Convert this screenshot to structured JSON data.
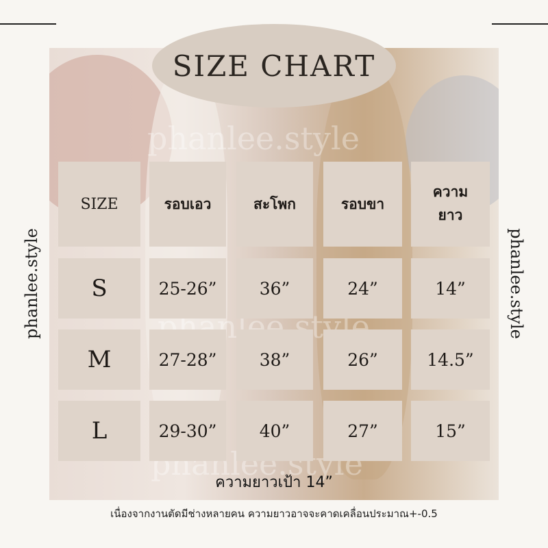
{
  "title": "SIZE CHART",
  "brand_side": "phanlee.style",
  "watermark": "phanlee.style",
  "table": {
    "headers": [
      "SIZE",
      "รอบเอว",
      "สะโพก",
      "รอบขา",
      "ความ\nยาว"
    ],
    "header_lines_length": [
      "ความ",
      "ยาว"
    ],
    "rows": [
      {
        "size": "S",
        "values": [
          "25-26”",
          "36”",
          "24”",
          "14”"
        ]
      },
      {
        "size": "M",
        "values": [
          "27-28”",
          "38”",
          "26”",
          "14.5”"
        ]
      },
      {
        "size": "L",
        "values": [
          "29-30”",
          "40”",
          "27”",
          "15”"
        ]
      }
    ]
  },
  "rise_note": "ความยาวเป้า 14”",
  "footer_note": "เนื่องจากงานตัดมีช่างหลายคน ความยาวอาจจะคาดเคลื่อนประมาณ+-0.5",
  "colors": {
    "cell": "#dfd4ca",
    "oval": "#d8cdc2",
    "background": "#f8f6f2"
  }
}
